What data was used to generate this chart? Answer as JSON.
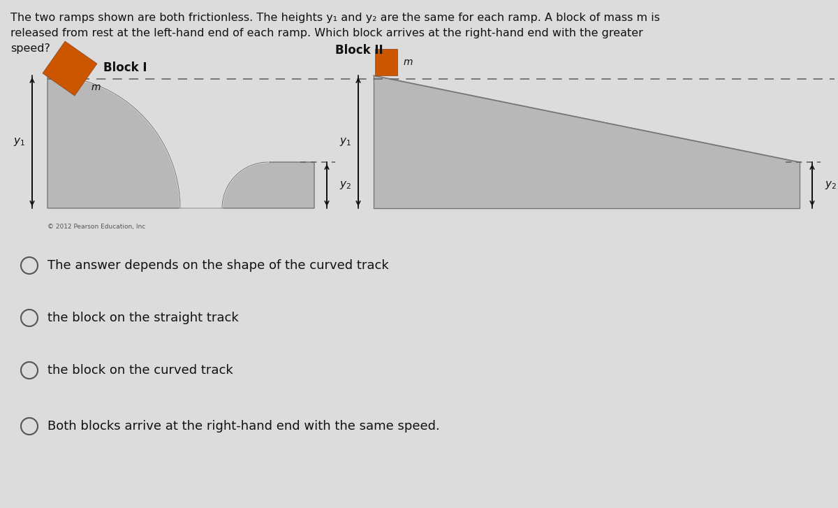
{
  "bg_color": "#dcdcdc",
  "question_line1": "The two ramps shown are both frictionless. The heights y₁ and y₂ are the same for each ramp. A block of mass m is",
  "question_line2": "released from rest at the left-hand end of each ramp. Which block arrives at the right-hand end with the greater",
  "question_line3": "speed?",
  "block1_label": "Block I",
  "block2_label": "Block II",
  "block_color": "#cc5500",
  "ramp_fill": "#b8b8b8",
  "ramp_edge": "#777777",
  "dashed_color": "#666666",
  "arrow_color": "#111111",
  "copyright": "© 2012 Pearson Education, Inc",
  "options": [
    "The answer depends on the shape of the curved track",
    "the block on the straight track",
    "the block on the curved track",
    "Both blocks arrive at the right-hand end with the same speed."
  ],
  "option_fontsize": 13,
  "question_fontsize": 11.5,
  "text_color": "#111111"
}
